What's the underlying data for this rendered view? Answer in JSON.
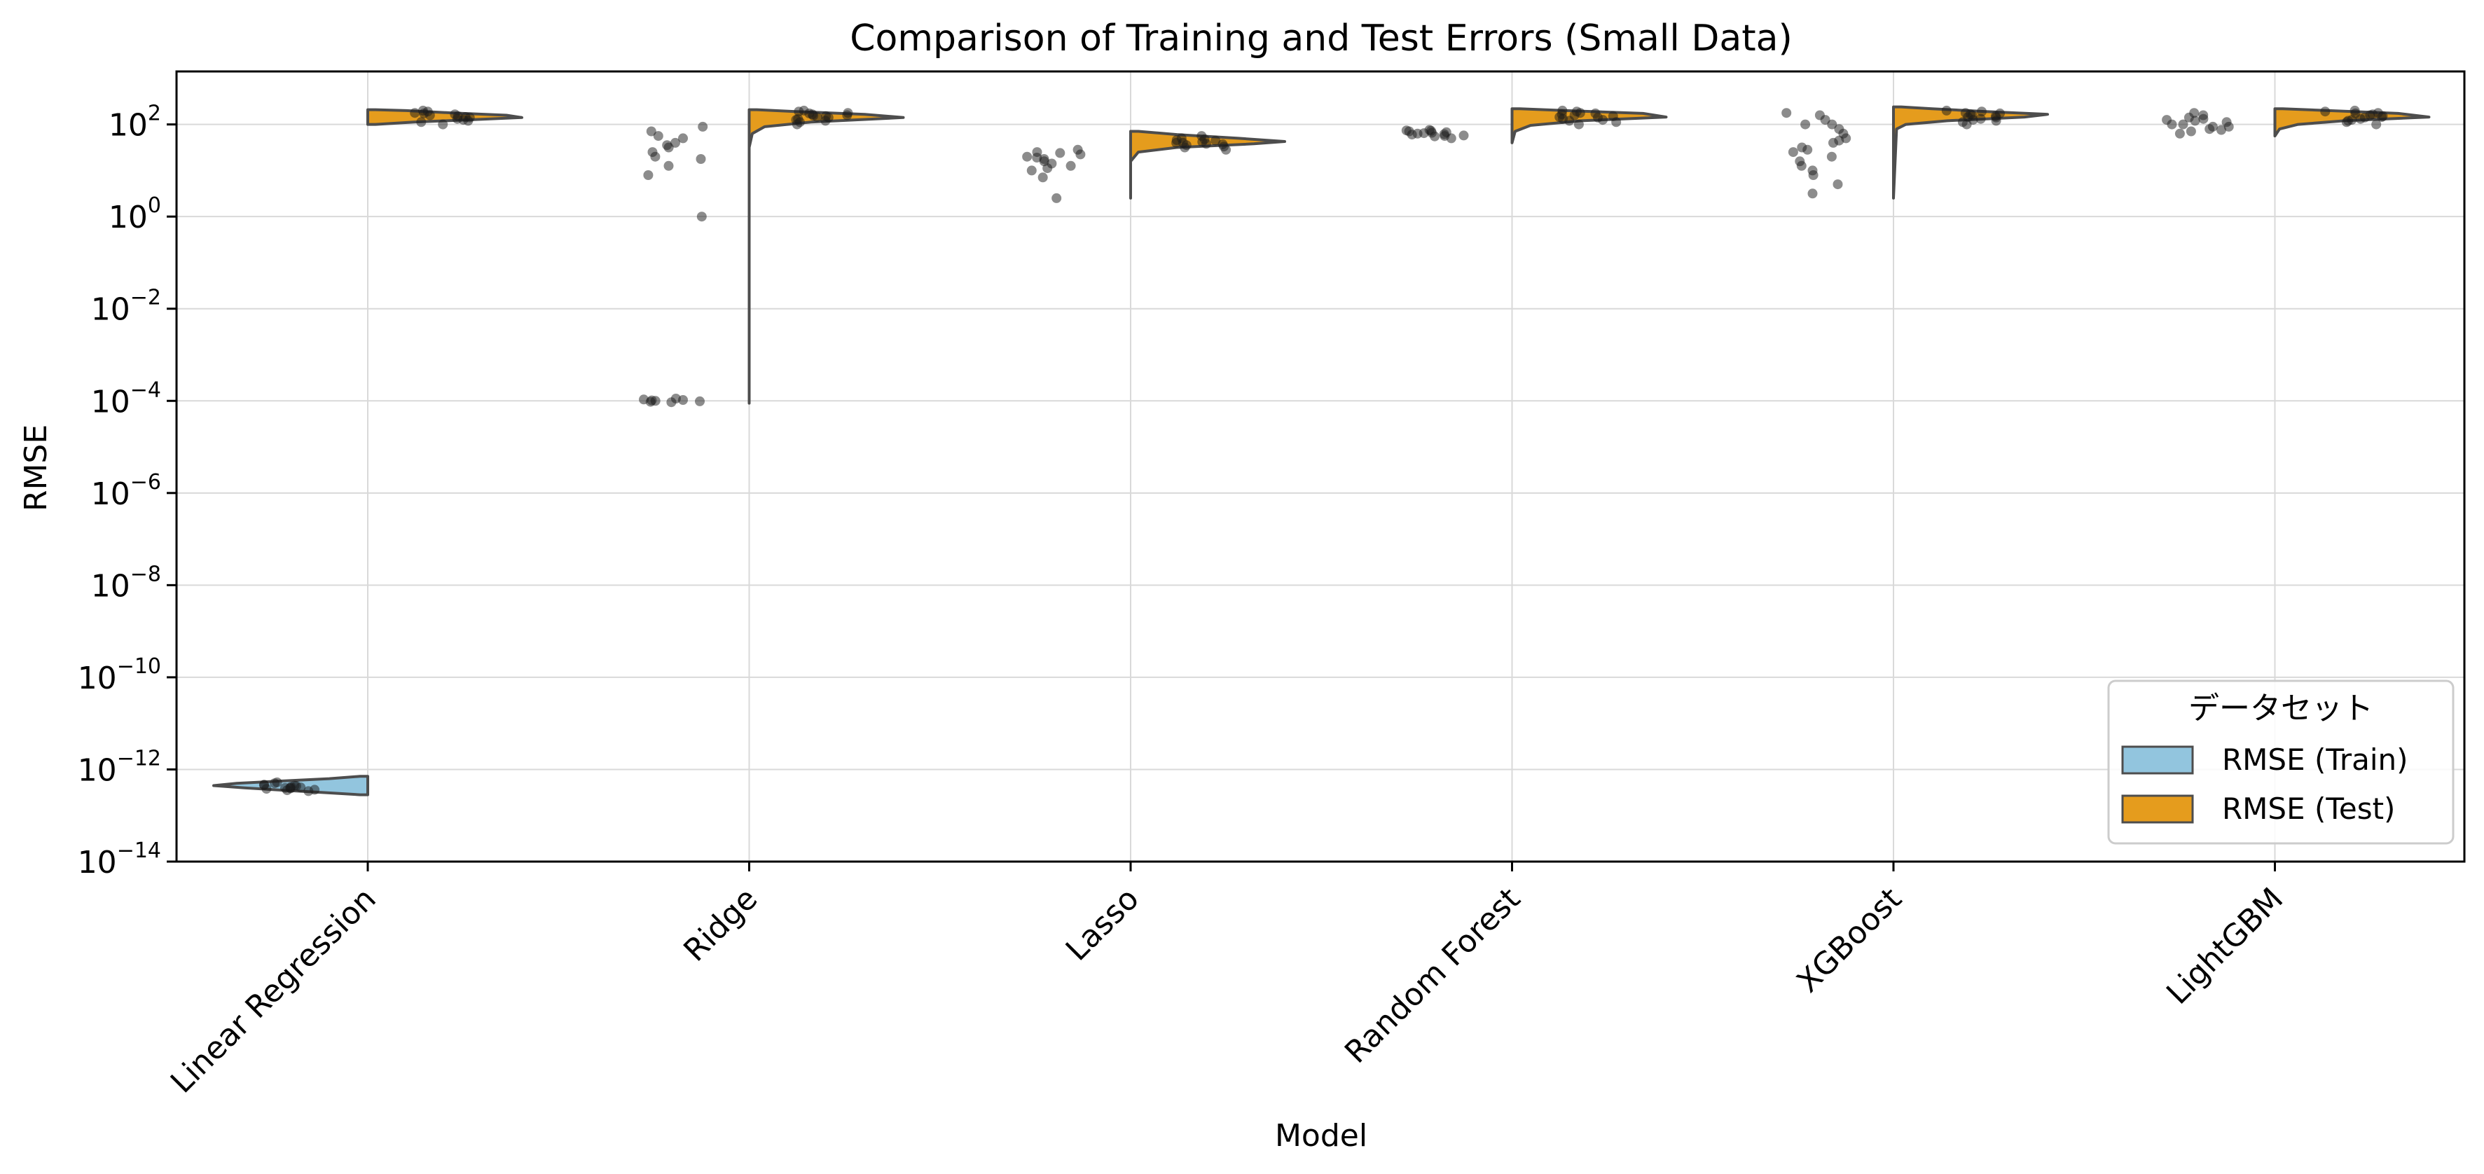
{
  "chart_data": {
    "type": "violin",
    "title": "Comparison of Training and Test Errors (Small Data)",
    "xlabel": "Model",
    "ylabel": "RMSE",
    "yscale": "log",
    "ylim_exp": [
      -14,
      3.15
    ],
    "ytick_exponents": [
      -14,
      -12,
      -10,
      -8,
      -6,
      -4,
      -2,
      0,
      2
    ],
    "grid": true,
    "categories": [
      "Linear Regression",
      "Ridge",
      "Lasso",
      "Random Forest",
      "XGBoost",
      "LightGBM"
    ],
    "legend": {
      "title": "データセット",
      "placement": "lower-right",
      "entries": [
        "RMSE (Train)",
        "RMSE (Test)"
      ]
    },
    "colors": {
      "train": "#92c5de",
      "test": "#e59c1d",
      "outline": "#4d4d4d",
      "points": "#1a1a1a"
    },
    "series": [
      {
        "name": "RMSE (Train)",
        "values_log10": [
          [
            -12.4,
            -12.35,
            -12.42,
            -12.3,
            -12.45,
            -12.38,
            -12.33,
            -12.44,
            -12.36,
            -12.4,
            -12.28,
            -12.47,
            -12.39,
            -12.34,
            -12.41
          ],
          [
            -4.0,
            -3.98,
            -4.02,
            -3.95,
            -4.03,
            -3.99,
            -3.97,
            -4.01,
            0.0,
            0.9,
            1.1,
            1.25,
            1.4,
            1.55,
            1.6,
            1.7,
            1.75,
            1.85,
            1.95,
            1.5,
            1.3
          ],
          [
            0.4,
            0.85,
            1.0,
            1.1,
            1.2,
            1.25,
            1.3,
            1.35,
            1.4,
            1.45,
            1.15,
            1.28,
            1.38,
            1.05
          ],
          [
            1.7,
            1.75,
            1.78,
            1.8,
            1.82,
            1.85,
            1.87,
            1.88,
            1.83,
            1.79,
            1.76,
            1.81,
            1.86,
            1.74
          ],
          [
            0.5,
            0.7,
            0.9,
            1.0,
            1.1,
            1.2,
            1.3,
            1.4,
            1.5,
            1.6,
            1.65,
            1.7,
            1.8,
            1.9,
            2.0,
            2.1,
            2.2,
            2.25,
            2.0,
            1.45
          ],
          [
            1.8,
            1.85,
            1.9,
            1.95,
            2.0,
            2.05,
            2.1,
            2.15,
            2.2,
            2.25,
            2.0,
            1.95,
            2.08,
            1.88,
            2.12
          ]
        ]
      },
      {
        "name": "RMSE (Test)",
        "values_log10": [
          [
            2.0,
            2.05,
            2.1,
            2.15,
            2.2,
            2.25,
            2.3,
            2.18,
            2.12,
            2.22,
            2.08,
            2.28,
            2.16,
            2.24
          ],
          [
            2.0,
            2.05,
            2.1,
            2.15,
            2.2,
            2.25,
            2.3,
            2.18,
            2.12,
            2.22,
            2.08,
            2.28,
            2.16,
            2.24,
            2.19
          ],
          [
            1.45,
            1.5,
            1.55,
            1.6,
            1.65,
            1.7,
            1.75,
            1.6,
            1.58,
            1.62,
            1.66,
            1.52,
            1.68,
            1.57
          ],
          [
            2.0,
            2.05,
            2.1,
            2.15,
            2.2,
            2.25,
            2.3,
            2.18,
            2.12,
            2.22,
            2.08,
            2.28,
            2.16,
            2.24
          ],
          [
            2.0,
            2.05,
            2.1,
            2.15,
            2.2,
            2.25,
            2.3,
            2.18,
            2.12,
            2.22,
            2.08,
            2.28,
            2.16,
            2.24
          ],
          [
            2.0,
            2.05,
            2.1,
            2.15,
            2.2,
            2.25,
            2.3,
            2.18,
            2.12,
            2.22,
            2.08,
            2.28,
            2.16,
            2.24
          ]
        ]
      }
    ],
    "violins": {
      "train": [
        {
          "min": -12.55,
          "max": -12.15,
          "profile": [
            [
              -12.55,
              0.05
            ],
            [
              -12.5,
              0.3
            ],
            [
              -12.45,
              0.55
            ],
            [
              -12.4,
              0.8
            ],
            [
              -12.35,
              1.0
            ],
            [
              -12.3,
              0.85
            ],
            [
              -12.25,
              0.55
            ],
            [
              -12.2,
              0.25
            ],
            [
              -12.15,
              0.05
            ]
          ]
        },
        null,
        null,
        null,
        null,
        null
      ],
      "test": [
        {
          "min": 2.0,
          "max": 2.32,
          "profile": [
            [
              2.0,
              0.05
            ],
            [
              2.05,
              0.3
            ],
            [
              2.1,
              0.65
            ],
            [
              2.15,
              1.0
            ],
            [
              2.2,
              0.9
            ],
            [
              2.25,
              0.55
            ],
            [
              2.3,
              0.25
            ],
            [
              2.32,
              0.05
            ]
          ]
        },
        {
          "min": -4.05,
          "max": 2.32,
          "profile": [
            [
              -4.05,
              0.0
            ],
            [
              1.5,
              0.0
            ],
            [
              1.8,
              0.02
            ],
            [
              1.95,
              0.1
            ],
            [
              2.05,
              0.4
            ],
            [
              2.15,
              1.0
            ],
            [
              2.22,
              0.75
            ],
            [
              2.28,
              0.3
            ],
            [
              2.32,
              0.05
            ]
          ]
        },
        {
          "min": 0.4,
          "max": 1.85,
          "profile": [
            [
              0.4,
              0.0
            ],
            [
              1.2,
              0.0
            ],
            [
              1.4,
              0.05
            ],
            [
              1.5,
              0.3
            ],
            [
              1.58,
              0.8
            ],
            [
              1.63,
              1.0
            ],
            [
              1.7,
              0.7
            ],
            [
              1.78,
              0.3
            ],
            [
              1.85,
              0.05
            ]
          ]
        },
        {
          "min": 1.6,
          "max": 2.34,
          "profile": [
            [
              1.6,
              0.0
            ],
            [
              1.85,
              0.02
            ],
            [
              1.98,
              0.12
            ],
            [
              2.08,
              0.45
            ],
            [
              2.16,
              1.0
            ],
            [
              2.24,
              0.85
            ],
            [
              2.3,
              0.35
            ],
            [
              2.34,
              0.05
            ]
          ]
        },
        {
          "min": 0.4,
          "max": 2.38,
          "profile": [
            [
              0.4,
              0.0
            ],
            [
              1.9,
              0.02
            ],
            [
              2.0,
              0.08
            ],
            [
              2.08,
              0.35
            ],
            [
              2.16,
              0.85
            ],
            [
              2.22,
              1.0
            ],
            [
              2.28,
              0.6
            ],
            [
              2.34,
              0.25
            ],
            [
              2.38,
              0.05
            ]
          ]
        },
        {
          "min": 1.75,
          "max": 2.34,
          "profile": [
            [
              1.75,
              0.0
            ],
            [
              1.9,
              0.03
            ],
            [
              2.0,
              0.15
            ],
            [
              2.08,
              0.45
            ],
            [
              2.16,
              1.0
            ],
            [
              2.24,
              0.8
            ],
            [
              2.3,
              0.35
            ],
            [
              2.34,
              0.05
            ]
          ]
        }
      ]
    }
  }
}
